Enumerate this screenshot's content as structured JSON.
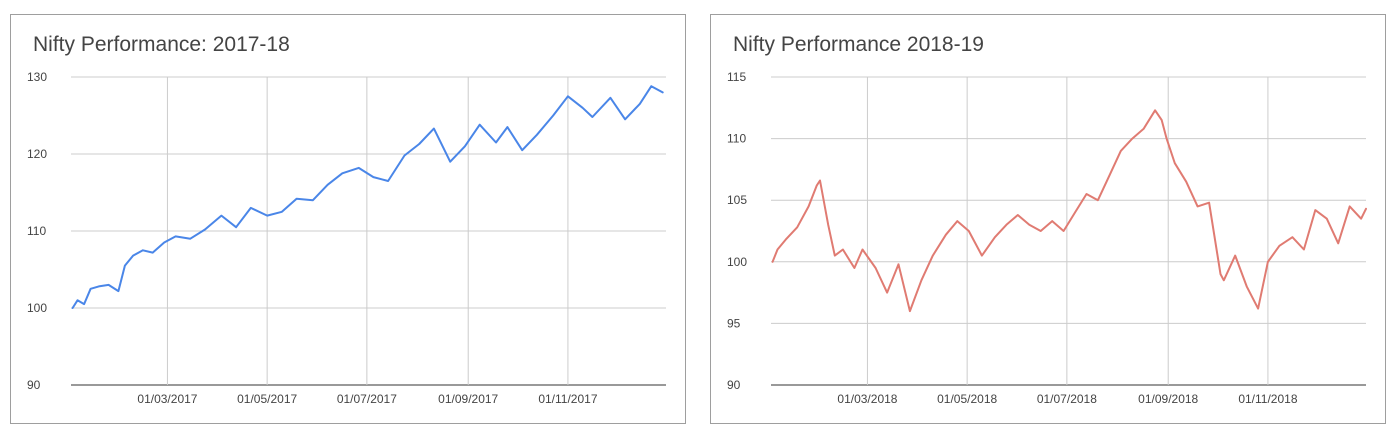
{
  "chart_data": [
    {
      "type": "line",
      "title": "Nifty Performance: 2017-18",
      "xlabel": "",
      "ylabel": "",
      "ylim": [
        90,
        130
      ],
      "yticks": [
        90,
        100,
        110,
        120,
        130
      ],
      "x_range": [
        "01/01/2017",
        "31/12/2017"
      ],
      "x_tick_labels": [
        "01/03/2017",
        "01/05/2017",
        "01/07/2017",
        "01/09/2017",
        "01/11/2017"
      ],
      "grid": true,
      "legend": "none",
      "line_color": "#4a86e8",
      "series": [
        {
          "x": [
            "02/01/2017",
            "05/01/2017",
            "09/01/2017",
            "13/01/2017",
            "18/01/2017",
            "24/01/2017",
            "30/01/2017",
            "03/02/2017",
            "08/02/2017",
            "14/02/2017",
            "20/02/2017",
            "27/02/2017",
            "06/03/2017",
            "15/03/2017",
            "24/03/2017",
            "03/04/2017",
            "12/04/2017",
            "21/04/2017",
            "01/05/2017",
            "10/05/2017",
            "19/05/2017",
            "29/05/2017",
            "07/06/2017",
            "16/06/2017",
            "26/06/2017",
            "05/07/2017",
            "14/07/2017",
            "24/07/2017",
            "02/08/2017",
            "11/08/2017",
            "21/08/2017",
            "30/08/2017",
            "08/09/2017",
            "18/09/2017",
            "25/09/2017",
            "04/10/2017",
            "13/10/2017",
            "23/10/2017",
            "01/11/2017",
            "10/11/2017",
            "16/11/2017",
            "27/11/2017",
            "06/12/2017",
            "15/12/2017",
            "22/12/2017",
            "29/12/2017"
          ],
          "values": [
            100.0,
            101.0,
            100.5,
            102.5,
            102.8,
            103.0,
            102.2,
            105.5,
            106.8,
            107.5,
            107.2,
            108.5,
            109.3,
            109.0,
            110.2,
            112.0,
            110.5,
            113.0,
            112.0,
            112.5,
            114.2,
            114.0,
            116.0,
            117.5,
            118.2,
            117.0,
            116.5,
            119.8,
            121.3,
            123.3,
            119.0,
            121.0,
            123.8,
            121.5,
            123.5,
            120.5,
            122.5,
            125.0,
            127.5,
            126.0,
            124.8,
            127.3,
            124.5,
            126.5,
            128.8,
            128.0
          ]
        }
      ]
    },
    {
      "type": "line",
      "title": "Nifty Performance 2018-19",
      "xlabel": "",
      "ylabel": "",
      "ylim": [
        90,
        115
      ],
      "yticks": [
        90,
        95,
        100,
        105,
        110,
        115
      ],
      "x_range": [
        "01/01/2018",
        "31/12/2018"
      ],
      "x_tick_labels": [
        "01/03/2018",
        "01/05/2018",
        "01/07/2018",
        "01/09/2018",
        "01/11/2018"
      ],
      "grid": true,
      "legend": "none",
      "line_color": "#e07b72",
      "series": [
        {
          "x": [
            "02/01/2018",
            "05/01/2018",
            "10/01/2018",
            "17/01/2018",
            "24/01/2018",
            "29/01/2018",
            "31/01/2018",
            "05/02/2018",
            "09/02/2018",
            "14/02/2018",
            "21/02/2018",
            "26/02/2018",
            "06/03/2018",
            "13/03/2018",
            "20/03/2018",
            "27/03/2018",
            "03/04/2018",
            "10/04/2018",
            "18/04/2018",
            "25/04/2018",
            "02/05/2018",
            "10/05/2018",
            "18/05/2018",
            "25/05/2018",
            "01/06/2018",
            "08/06/2018",
            "15/06/2018",
            "22/06/2018",
            "29/06/2018",
            "06/07/2018",
            "13/07/2018",
            "20/07/2018",
            "27/07/2018",
            "03/08/2018",
            "10/08/2018",
            "17/08/2018",
            "24/08/2018",
            "28/08/2018",
            "31/08/2018",
            "05/09/2018",
            "12/09/2018",
            "19/09/2018",
            "26/09/2018",
            "03/10/2018",
            "05/10/2018",
            "12/10/2018",
            "19/10/2018",
            "26/10/2018",
            "01/11/2018",
            "08/11/2018",
            "16/11/2018",
            "23/11/2018",
            "30/11/2018",
            "07/12/2018",
            "14/12/2018",
            "21/12/2018",
            "28/12/2018",
            "31/12/2018"
          ],
          "values": [
            100.0,
            101.0,
            101.8,
            102.8,
            104.5,
            106.2,
            106.6,
            103.0,
            100.5,
            101.0,
            99.5,
            101.0,
            99.5,
            97.5,
            99.8,
            96.0,
            98.5,
            100.5,
            102.2,
            103.3,
            102.5,
            100.5,
            102.0,
            103.0,
            103.8,
            103.0,
            102.5,
            103.3,
            102.5,
            104.0,
            105.5,
            105.0,
            107.0,
            109.0,
            110.0,
            110.8,
            112.3,
            111.5,
            110.0,
            108.0,
            106.5,
            104.5,
            104.8,
            99.0,
            98.5,
            100.5,
            98.0,
            96.2,
            100.0,
            101.3,
            102.0,
            101.0,
            104.2,
            103.5,
            101.5,
            104.5,
            103.5,
            104.3
          ]
        }
      ]
    }
  ]
}
